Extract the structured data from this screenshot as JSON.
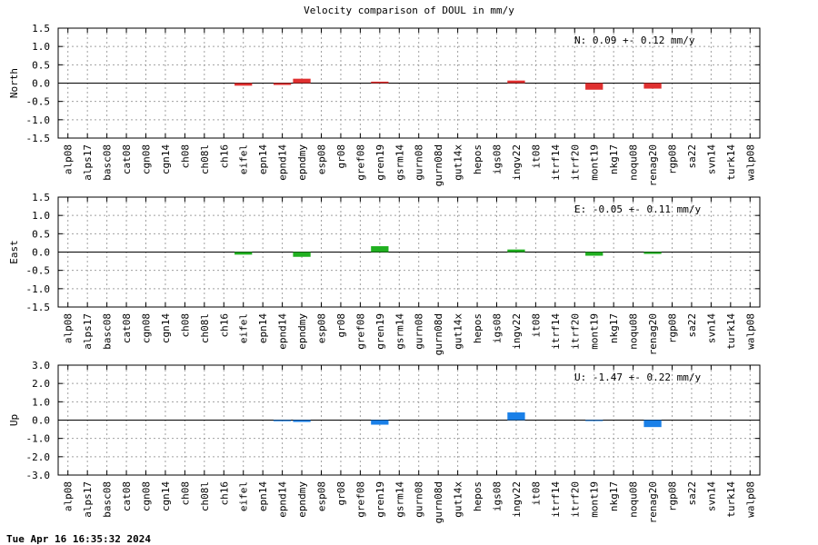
{
  "title": "Velocity comparison of DOUL in mm/y",
  "footer": "Tue Apr 16 16:35:32 2024",
  "chart_data": [
    {
      "type": "bar",
      "ylabel": "North",
      "annotation": "N:   0.09 +-  0.12 mm/y",
      "color": "#e03030",
      "ylim": [
        -1.5,
        1.5
      ],
      "yticks": [
        1.5,
        1.0,
        0.5,
        0.0,
        -0.5,
        -1.0,
        -1.5
      ],
      "ytick_labels": [
        "1.5",
        "1.0",
        "0.5",
        "0.0",
        "-0.5",
        "-1.0",
        "-1.5"
      ],
      "grid": true,
      "categories": [
        "alp08",
        "alps17",
        "basc08",
        "cat08",
        "cgn08",
        "cgn14",
        "ch08",
        "ch08l",
        "ch16",
        "eifel",
        "epn14",
        "epnd14",
        "epndmy",
        "esp08",
        "gr08",
        "gref08",
        "gren19",
        "gsrm14",
        "gurn08",
        "gurn08d",
        "gut14x",
        "hepos",
        "igs08",
        "ingv22",
        "it08",
        "itrf14",
        "itrf20",
        "mont19",
        "nkg17",
        "noqu08",
        "renag20",
        "rgp08",
        "sa22",
        "svn14",
        "turk14",
        "walp08"
      ],
      "values": [
        0,
        0,
        0,
        0,
        0,
        0,
        0,
        0,
        0,
        -0.07,
        0,
        -0.05,
        0.12,
        0,
        0,
        0,
        0.04,
        0,
        0,
        0,
        0,
        0,
        0,
        0.07,
        0,
        0,
        0,
        -0.18,
        0,
        0,
        -0.15,
        0,
        0,
        0,
        0,
        0
      ]
    },
    {
      "type": "bar",
      "ylabel": "East",
      "annotation": "E:  -0.05 +-  0.11 mm/y",
      "color": "#20b020",
      "ylim": [
        -1.5,
        1.5
      ],
      "yticks": [
        1.5,
        1.0,
        0.5,
        0.0,
        -0.5,
        -1.0,
        -1.5
      ],
      "ytick_labels": [
        "1.5",
        "1.0",
        "0.5",
        "0.0",
        "-0.5",
        "-1.0",
        "-1.5"
      ],
      "grid": true,
      "categories": [
        "alp08",
        "alps17",
        "basc08",
        "cat08",
        "cgn08",
        "cgn14",
        "ch08",
        "ch08l",
        "ch16",
        "eifel",
        "epn14",
        "epnd14",
        "epndmy",
        "esp08",
        "gr08",
        "gref08",
        "gren19",
        "gsrm14",
        "gurn08",
        "gurn08d",
        "gut14x",
        "hepos",
        "igs08",
        "ingv22",
        "it08",
        "itrf14",
        "itrf20",
        "mont19",
        "nkg17",
        "noqu08",
        "renag20",
        "rgp08",
        "sa22",
        "svn14",
        "turk14",
        "walp08"
      ],
      "values": [
        0,
        0,
        0,
        0,
        0,
        0,
        0,
        0,
        0,
        -0.07,
        0,
        0,
        -0.13,
        0,
        0,
        0,
        0.16,
        0,
        0,
        0,
        0,
        0,
        0,
        0.07,
        0,
        0,
        0,
        -0.1,
        0,
        0,
        -0.05,
        0,
        0,
        0,
        0,
        0
      ]
    },
    {
      "type": "bar",
      "ylabel": "Up",
      "annotation": "U:  -1.47 +-  0.22 mm/y",
      "color": "#1a80e8",
      "ylim": [
        -3.0,
        3.0
      ],
      "yticks": [
        3.0,
        2.0,
        1.0,
        0.0,
        -1.0,
        -2.0,
        -3.0
      ],
      "ytick_labels": [
        "3.0",
        "2.0",
        "1.0",
        "0.0",
        "-1.0",
        "-2.0",
        "-3.0"
      ],
      "grid": true,
      "categories": [
        "alp08",
        "alps17",
        "basc08",
        "cat08",
        "cgn08",
        "cgn14",
        "ch08",
        "ch08l",
        "ch16",
        "eifel",
        "epn14",
        "epnd14",
        "epndmy",
        "esp08",
        "gr08",
        "gref08",
        "gren19",
        "gsrm14",
        "gurn08",
        "gurn08d",
        "gut14x",
        "hepos",
        "igs08",
        "ingv22",
        "it08",
        "itrf14",
        "itrf20",
        "mont19",
        "nkg17",
        "noqu08",
        "renag20",
        "rgp08",
        "sa22",
        "svn14",
        "turk14",
        "walp08"
      ],
      "values": [
        0,
        0,
        0,
        0,
        0,
        0,
        0,
        0,
        0,
        0,
        0,
        -0.06,
        -0.1,
        0,
        0,
        0,
        -0.25,
        0,
        0,
        0,
        0,
        0,
        0,
        0.42,
        0,
        0,
        0,
        -0.05,
        0,
        0,
        -0.38,
        0,
        0,
        0,
        0,
        0
      ]
    }
  ]
}
